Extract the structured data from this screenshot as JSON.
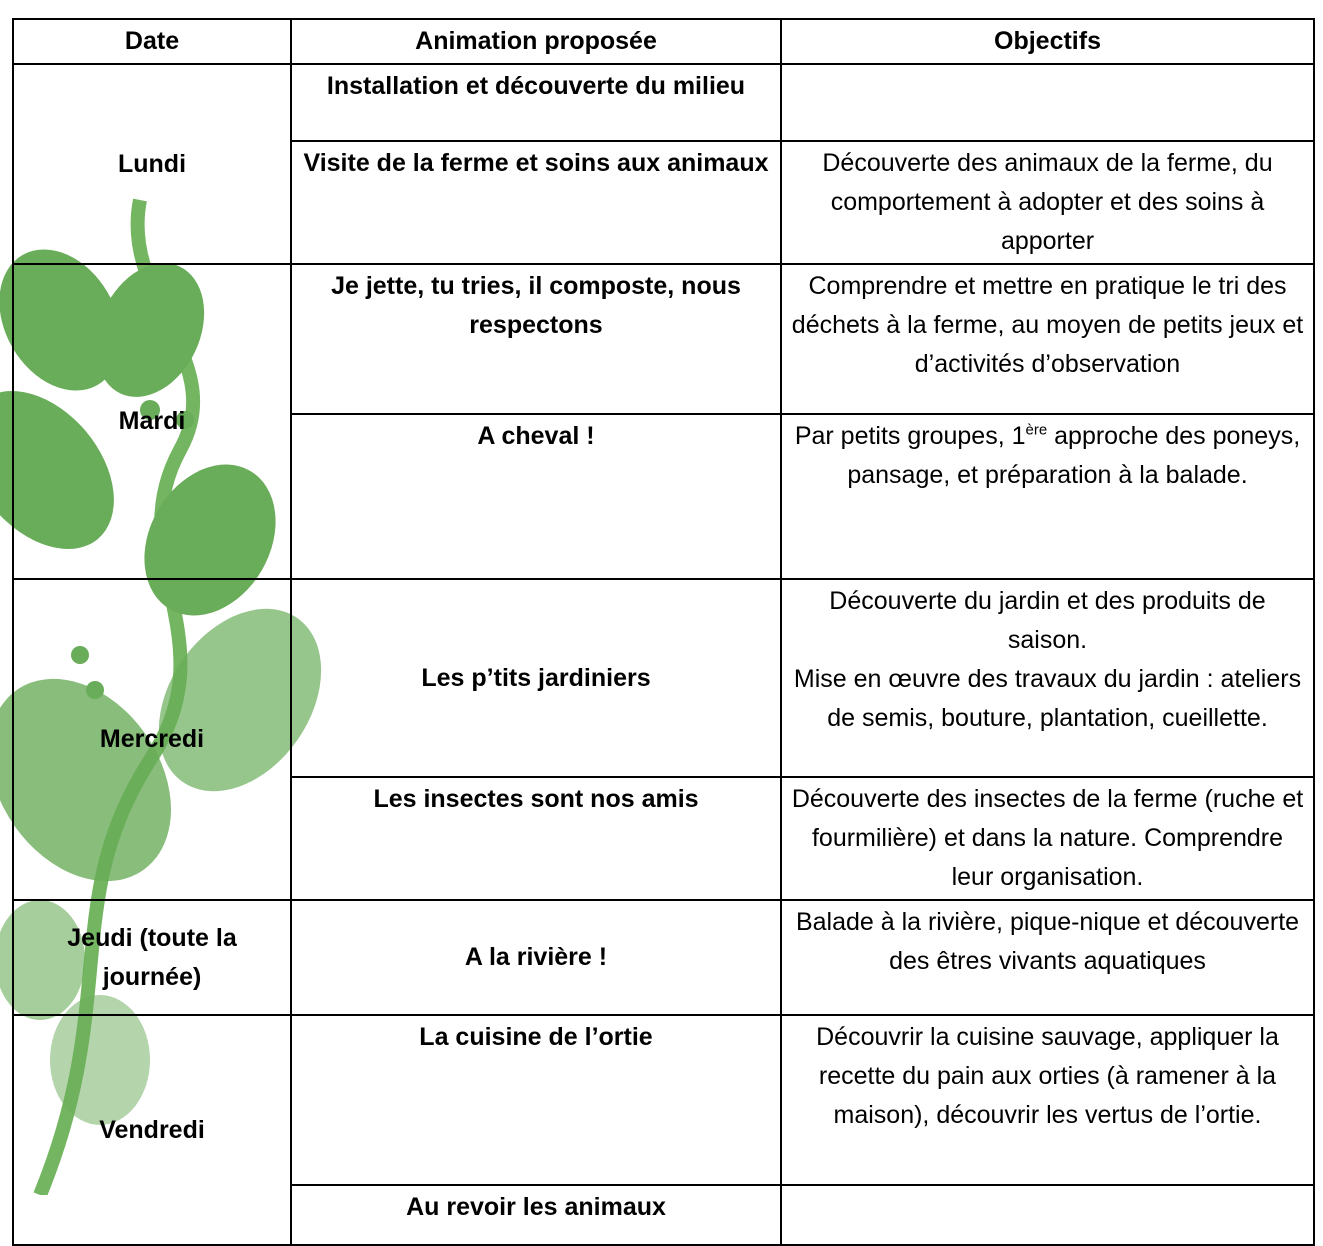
{
  "table": {
    "header": [
      "Date",
      "Animation proposée",
      "Objectifs"
    ],
    "rows": [
      {
        "date": "Lundi",
        "activities": [
          {
            "animation": "Installation et découverte du milieu"
          },
          {
            "animation": "Visite de la ferme et soins aux animaux",
            "objectives": [
              "Découverte des animaux de la ferme, du comportement à adopter et des soins à apporter"
            ]
          }
        ]
      },
      {
        "date": "Mardi",
        "activities": [
          {
            "animation": "Je jette, tu tries, il composte, nous respectons",
            "objectives": [
              "Comprendre et mettre en pratique le tri des déchets à la ferme, au moyen de petits jeux et d’activités d’observation"
            ]
          },
          {
            "animation": "A cheval !",
            "objectives": [
              "Par petits groupes, 1",
              "ère",
              " approche des poneys, pansage, et préparation à la balade."
            ]
          }
        ]
      },
      {
        "date": "Mercredi",
        "activities": [
          {
            "animation": "Les p’tits jardiniers",
            "objectives": [
              "Découverte du jardin et des produits de saison.",
              "Mise en œuvre des travaux du jardin : ateliers de semis, bouture, plantation, cueillette."
            ]
          },
          {
            "animation": "Les insectes sont nos amis",
            "objectives": [
              "Découverte des insectes de la ferme (ruche et fourmilière) et dans la nature. Comprendre leur organisation."
            ]
          }
        ]
      },
      {
        "date": "Jeudi (toute la journée)",
        "activities": [
          {
            "animation": "A la rivière !",
            "objectives": [
              "Balade à la rivière, pique-nique et découverte des êtres vivants aquatiques"
            ]
          }
        ]
      },
      {
        "date": "Vendredi",
        "activities": [
          {
            "animation": "La cuisine de l’ortie",
            "objectives": [
              "Découvrir la cuisine sauvage, appliquer la recette du pain aux orties (à ramener à la maison), découvrir les vertus de l’ortie."
            ]
          },
          {
            "animation": "Au revoir les animaux"
          }
        ]
      }
    ]
  }
}
